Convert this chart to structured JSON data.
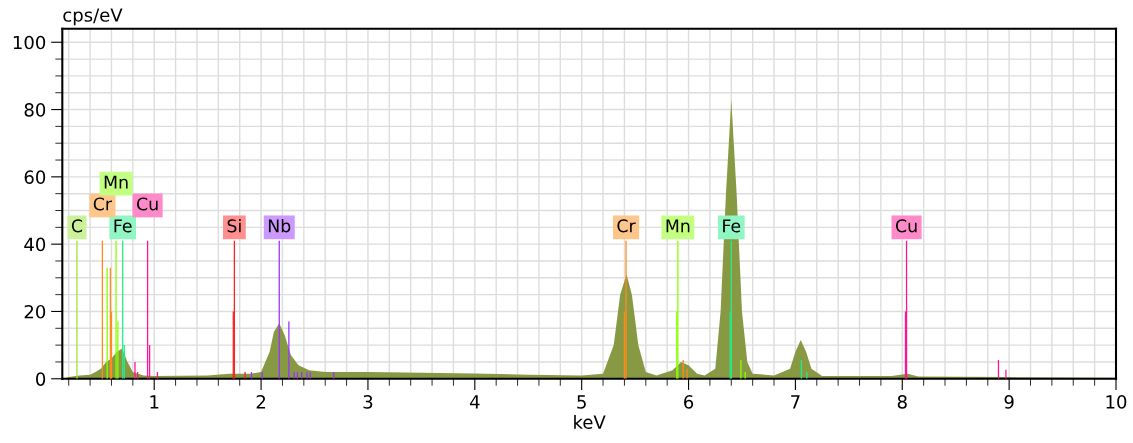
{
  "chart_data": {
    "type": "area",
    "xlabel": "keV",
    "ylabel": "cps/eV",
    "xlim": [
      0.14,
      10
    ],
    "ylim": [
      0,
      104
    ],
    "xticks": [
      {
        "value": 0.2,
        "label": null
      },
      {
        "value": 0.4,
        "label": null
      },
      {
        "value": 0.6,
        "label": null
      },
      {
        "value": 0.8,
        "label": null
      },
      1,
      {
        "value": 1.2,
        "label": null
      },
      {
        "value": 1.4,
        "label": null
      },
      {
        "value": 1.6,
        "label": null
      },
      {
        "value": 1.8,
        "label": null
      },
      2,
      {
        "value": 2.2,
        "label": null
      },
      {
        "value": 2.4,
        "label": null
      },
      {
        "value": 2.6,
        "label": null
      },
      {
        "value": 2.8,
        "label": null
      },
      3,
      {
        "value": 3.2,
        "label": null
      },
      {
        "value": 3.4,
        "label": null
      },
      {
        "value": 3.6,
        "label": null
      },
      {
        "value": 3.8,
        "label": null
      },
      4,
      {
        "value": 4.2,
        "label": null
      },
      {
        "value": 4.4,
        "label": null
      },
      {
        "value": 4.6,
        "label": null
      },
      {
        "value": 4.8,
        "label": null
      },
      5,
      {
        "value": 5.2,
        "label": null
      },
      {
        "value": 5.4,
        "label": null
      },
      {
        "value": 5.6,
        "label": null
      },
      {
        "value": 5.8,
        "label": null
      },
      6,
      {
        "value": 6.2,
        "label": null
      },
      {
        "value": 6.4,
        "label": null
      },
      {
        "value": 6.6,
        "label": null
      },
      {
        "value": 6.8,
        "label": null
      },
      7,
      {
        "value": 7.2,
        "label": null
      },
      {
        "value": 7.4,
        "label": null
      },
      {
        "value": 7.6,
        "label": null
      },
      {
        "value": 7.8,
        "label": null
      },
      8,
      {
        "value": 8.2,
        "label": null
      },
      {
        "value": 8.4,
        "label": null
      },
      {
        "value": 8.6,
        "label": null
      },
      {
        "value": 8.8,
        "label": null
      },
      9,
      {
        "value": 9.2,
        "label": null
      },
      {
        "value": 9.4,
        "label": null
      },
      {
        "value": 9.6,
        "label": null
      },
      {
        "value": 9.8,
        "label": null
      },
      10
    ],
    "yticks": [
      0,
      {
        "value": 5,
        "label": null
      },
      {
        "value": 10,
        "label": null
      },
      {
        "value": 15,
        "label": null
      },
      20,
      {
        "value": 25,
        "label": null
      },
      {
        "value": 30,
        "label": null
      },
      {
        "value": 35,
        "label": null
      },
      40,
      {
        "value": 45,
        "label": null
      },
      {
        "value": 50,
        "label": null
      },
      {
        "value": 55,
        "label": null
      },
      60,
      {
        "value": 65,
        "label": null
      },
      {
        "value": 70,
        "label": null
      },
      {
        "value": 75,
        "label": null
      },
      80,
      {
        "value": 85,
        "label": null
      },
      {
        "value": 90,
        "label": null
      },
      {
        "value": 95,
        "label": null
      },
      100
    ],
    "grid": true,
    "series": [
      {
        "color": "#889944",
        "x": [
          0.15,
          0.2,
          0.3,
          0.4,
          0.45,
          0.5,
          0.55,
          0.6,
          0.65,
          0.7,
          0.75,
          0.8,
          0.9,
          1.0,
          1.5,
          1.7,
          1.9,
          2.0,
          2.08,
          2.12,
          2.17,
          2.22,
          2.28,
          2.35,
          2.45,
          2.6,
          3.0,
          3.5,
          4.0,
          4.5,
          5.0,
          5.2,
          5.3,
          5.36,
          5.42,
          5.47,
          5.53,
          5.6,
          5.7,
          5.85,
          5.93,
          6.0,
          6.08,
          6.15,
          6.25,
          6.3,
          6.35,
          6.4,
          6.45,
          6.5,
          6.55,
          6.6,
          6.8,
          6.95,
          7.0,
          7.05,
          7.1,
          7.15,
          7.25,
          7.9,
          8.05,
          8.15,
          9.0,
          10.0
        ],
        "values": [
          0,
          0.5,
          1,
          1.2,
          2,
          3,
          5,
          6,
          8,
          9,
          5,
          2,
          1,
          0.8,
          1,
          1.5,
          1.5,
          2,
          8,
          14,
          16.5,
          13,
          7,
          4,
          2.5,
          2,
          2,
          1.8,
          1.6,
          1.2,
          1,
          1.5,
          10,
          25,
          31,
          25,
          10,
          2,
          1,
          2.5,
          5,
          4,
          1.5,
          1,
          3,
          20,
          55,
          83,
          55,
          20,
          5,
          1.5,
          1,
          3,
          8,
          11.5,
          8,
          3,
          0.8,
          0.8,
          1.5,
          0.7,
          0.5,
          0.3
        ]
      },
      {
        "type": "bar",
        "name": "C",
        "color": "#99e633",
        "x": [
          0.277
        ],
        "values": [
          41
        ]
      },
      {
        "type": "bar",
        "name": "Si",
        "color": "#ff2020",
        "x": [
          1.74,
          1.75,
          1.85
        ],
        "values": [
          20,
          41,
          2
        ]
      },
      {
        "type": "bar",
        "name": "Nb",
        "color": "#9933ff",
        "x": [
          1.91,
          2.01,
          2.17,
          2.26,
          2.31,
          2.34,
          2.38,
          2.43,
          2.46,
          2.68
        ],
        "values": [
          2,
          2,
          41,
          17,
          2,
          2,
          2,
          2,
          2,
          2
        ]
      },
      {
        "type": "bar",
        "name": "Fe",
        "color": "#22ee88",
        "x": [
          0.705,
          0.72,
          6.39,
          6.4,
          7.056,
          7.107
        ],
        "values": [
          41,
          10,
          20,
          41,
          5.6,
          2
        ]
      },
      {
        "type": "bar",
        "name": "Cr",
        "color": "#ff8c1a",
        "x": [
          0.515,
          0.59,
          0.6,
          5.4,
          5.415,
          5.95,
          5.985
        ],
        "values": [
          41,
          33,
          20,
          20,
          41,
          5.6,
          3
        ]
      },
      {
        "type": "bar",
        "name": "Cu",
        "color": "#ff1493",
        "x": [
          0.82,
          0.845,
          0.938,
          0.957,
          1.03,
          8.03,
          8.04,
          8.9,
          8.97
        ],
        "values": [
          5,
          2,
          41,
          10,
          2,
          20,
          41,
          5.6,
          2.7
        ]
      },
      {
        "type": "bar",
        "name": "Mn",
        "color": "#88ff00",
        "x": [
          0.56,
          0.643,
          0.66,
          5.89,
          5.9,
          6.49,
          6.53
        ],
        "values": [
          33,
          41,
          17,
          20,
          41,
          5.6,
          2
        ]
      }
    ]
  }
}
